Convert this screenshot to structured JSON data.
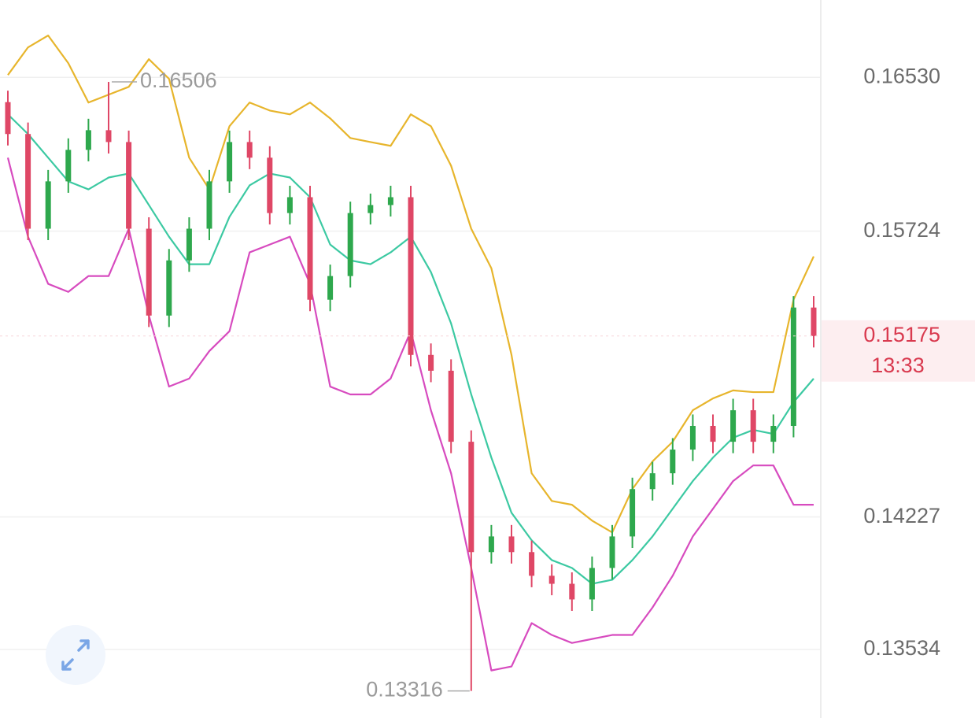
{
  "chart_data": {
    "type": "candlestick",
    "open": [
      0.164,
      0.16233,
      0.15737,
      0.15985,
      0.1615,
      0.16253,
      0.16191,
      0.15737,
      0.15282,
      0.15571,
      0.15737,
      0.15985,
      0.16191,
      0.16109,
      0.15819,
      0.15902,
      0.15365,
      0.15489,
      0.15819,
      0.15861,
      0.15902,
      0.15076,
      0.14993,
      0.14621,
      0.14043,
      0.14125,
      0.14043,
      0.13919,
      0.13877,
      0.13795,
      0.1396,
      0.14125,
      0.14373,
      0.14456,
      0.1458,
      0.14704,
      0.14621,
      0.14786,
      0.14621,
      0.14704,
      0.15324
    ],
    "high": [
      0.1646,
      0.16293,
      0.16045,
      0.1621,
      0.16313,
      0.16506,
      0.16251,
      0.15797,
      0.15631,
      0.15797,
      0.16045,
      0.16251,
      0.16251,
      0.16169,
      0.15962,
      0.15962,
      0.15549,
      0.15879,
      0.15921,
      0.15962,
      0.15962,
      0.15136,
      0.15053,
      0.14681,
      0.14185,
      0.14185,
      0.14103,
      0.13979,
      0.13937,
      0.1402,
      0.14185,
      0.14433,
      0.14516,
      0.1464,
      0.14764,
      0.14764,
      0.14846,
      0.14846,
      0.14764,
      0.15384,
      0.15384
    ],
    "low": [
      0.16173,
      0.15677,
      0.15677,
      0.15925,
      0.1609,
      0.16131,
      0.15677,
      0.15222,
      0.15222,
      0.15511,
      0.15677,
      0.15925,
      0.16049,
      0.15759,
      0.15759,
      0.15305,
      0.15305,
      0.15429,
      0.15759,
      0.15801,
      0.15016,
      0.14933,
      0.14561,
      0.13316,
      0.13983,
      0.13983,
      0.13859,
      0.13817,
      0.13735,
      0.13735,
      0.139,
      0.14065,
      0.14313,
      0.14396,
      0.1452,
      0.14561,
      0.14561,
      0.14561,
      0.14561,
      0.14644,
      0.15115
    ],
    "close": [
      0.16233,
      0.15737,
      0.15985,
      0.1615,
      0.16253,
      0.16191,
      0.15737,
      0.15282,
      0.15571,
      0.15737,
      0.15985,
      0.16191,
      0.16109,
      0.15819,
      0.15902,
      0.15365,
      0.15489,
      0.15819,
      0.15861,
      0.15902,
      0.15076,
      0.14993,
      0.14621,
      0.14043,
      0.14125,
      0.14043,
      0.13919,
      0.13877,
      0.13795,
      0.1396,
      0.14125,
      0.14373,
      0.14456,
      0.1458,
      0.14704,
      0.14621,
      0.14786,
      0.14621,
      0.14704,
      0.15324,
      0.15175
    ],
    "up_color": "#2ea84d",
    "down_color": "#df4766",
    "bands": [
      {
        "color": "#e7b52c",
        "values": [
          0.16542,
          0.16687,
          0.16749,
          0.16604,
          0.16398,
          0.16439,
          0.1648,
          0.16625,
          0.16522,
          0.16109,
          0.15943,
          0.16274,
          0.16398,
          0.16356,
          0.16336,
          0.16398,
          0.16315,
          0.16212,
          0.16191,
          0.16171,
          0.16336,
          0.16274,
          0.16067,
          0.15737,
          0.1553,
          0.15076,
          0.14456,
          0.14311,
          0.14291,
          0.14208,
          0.14146,
          0.14373,
          0.14518,
          0.14621,
          0.14786,
          0.14848,
          0.1489,
          0.14881,
          0.14881,
          0.15365,
          0.15592
        ]
      },
      {
        "color": "#3cc9a2",
        "values": [
          0.16336,
          0.16233,
          0.16109,
          0.15985,
          0.15943,
          0.16005,
          0.16026,
          0.15861,
          0.15695,
          0.15551,
          0.15551,
          0.15799,
          0.15964,
          0.16026,
          0.16005,
          0.15902,
          0.15654,
          0.15571,
          0.15551,
          0.15613,
          0.15695,
          0.1551,
          0.15241,
          0.14869,
          0.14538,
          0.14249,
          0.14105,
          0.14001,
          0.1396,
          0.13877,
          0.13898,
          0.14001,
          0.14125,
          0.1427,
          0.14415,
          0.14538,
          0.14642,
          0.14683,
          0.14662,
          0.14828,
          0.14952
        ]
      },
      {
        "color": "#d74bbf",
        "values": [
          0.16109,
          0.15695,
          0.15448,
          0.15406,
          0.15489,
          0.15489,
          0.15737,
          0.15282,
          0.1491,
          0.14952,
          0.15096,
          0.152,
          0.15613,
          0.15654,
          0.15695,
          0.15448,
          0.1491,
          0.14869,
          0.14869,
          0.14952,
          0.152,
          0.14786,
          0.14456,
          0.1396,
          0.13423,
          0.13444,
          0.13671,
          0.13609,
          0.13567,
          0.13588,
          0.13609,
          0.13609,
          0.13753,
          0.13919,
          0.14125,
          0.1427,
          0.14415,
          0.14497,
          0.14497,
          0.14291,
          0.14291
        ]
      }
    ],
    "ylim": [
      0.13174,
      0.16935
    ],
    "yticks": [
      {
        "value": 0.1653,
        "label": "0.16530"
      },
      0.15724,
      0.14227,
      0.13534
    ],
    "grid": true,
    "max_label": 0.16506,
    "min_label": 0.13316,
    "current_price": 0.15175,
    "countdown": "13:33"
  }
}
